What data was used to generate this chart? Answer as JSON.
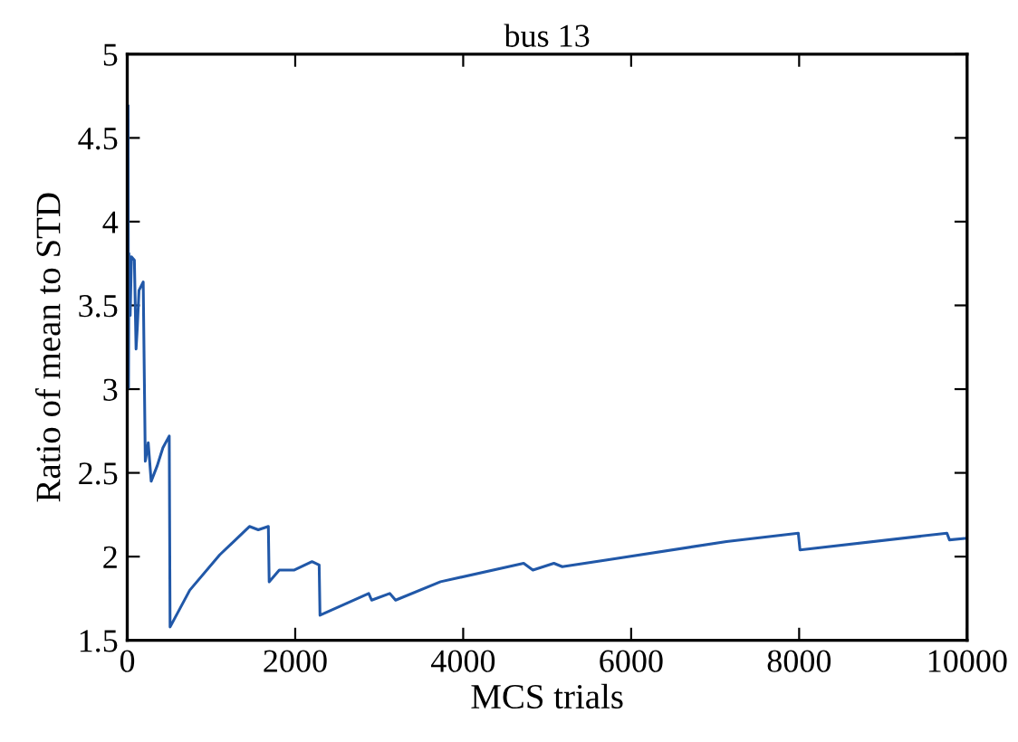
{
  "chart_data": {
    "type": "line",
    "title": "bus 13",
    "xlabel": "MCS trials",
    "ylabel": "Ratio of mean to STD",
    "x": [
      10,
      15,
      20,
      35,
      50,
      85,
      105,
      120,
      140,
      190,
      215,
      250,
      285,
      355,
      425,
      500,
      510,
      745,
      1100,
      1455,
      1560,
      1680,
      1690,
      1810,
      1990,
      2200,
      2285,
      2295,
      2875,
      2910,
      3125,
      3195,
      3730,
      4720,
      4830,
      5080,
      5180,
      5715,
      7135,
      7990,
      8010,
      9760,
      9790,
      10000
    ],
    "series": [
      {
        "color": "#2158a8",
        "values": [
          4.69,
          3.01,
          3.81,
          3.44,
          3.79,
          3.77,
          3.24,
          3.37,
          3.59,
          3.64,
          2.57,
          2.68,
          2.45,
          2.54,
          2.65,
          2.72,
          1.58,
          1.8,
          2.01,
          2.18,
          2.16,
          2.18,
          1.85,
          1.92,
          1.92,
          1.97,
          1.95,
          1.65,
          1.78,
          1.74,
          1.78,
          1.74,
          1.85,
          1.96,
          1.92,
          1.96,
          1.94,
          1.98,
          2.09,
          2.14,
          2.04,
          2.14,
          2.1,
          2.11
        ]
      }
    ],
    "xlim": [
      0,
      10000
    ],
    "xticks": [
      0,
      2000,
      4000,
      6000,
      8000,
      10000
    ],
    "ylim": [
      1.5,
      5
    ],
    "yticks": [
      1.5,
      2,
      2.5,
      3,
      3.5,
      4,
      4.5,
      5
    ],
    "grid": false,
    "legend": false
  }
}
